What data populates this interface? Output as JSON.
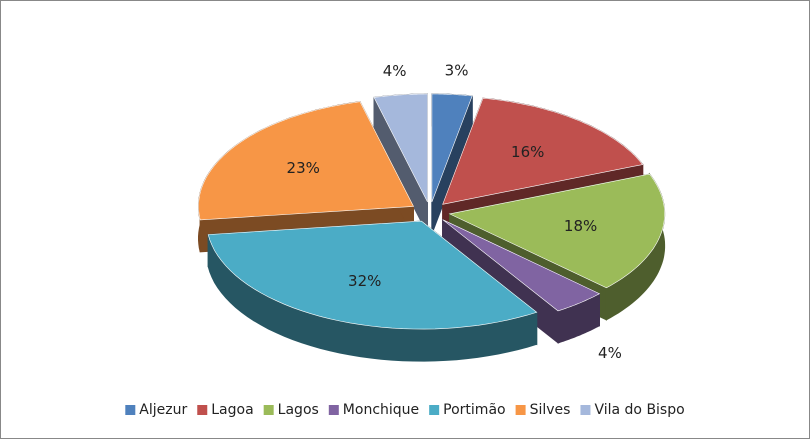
{
  "chart_data": {
    "type": "pie3d",
    "categories": [
      "Aljezur",
      "Lagoa",
      "Lagos",
      "Monchique",
      "Portimão",
      "Silves",
      "Vila do Bispo"
    ],
    "values": [
      3,
      16,
      18,
      4,
      32,
      23,
      4
    ],
    "value_labels": [
      "3%",
      "16%",
      "18%",
      "4%",
      "32%",
      "23%",
      "4%"
    ],
    "colors": [
      "#4f81bd",
      "#c0504d",
      "#9bbb59",
      "#8064a2",
      "#4bacc6",
      "#f79646",
      "#a5b8dc"
    ],
    "legend": "bottom"
  }
}
